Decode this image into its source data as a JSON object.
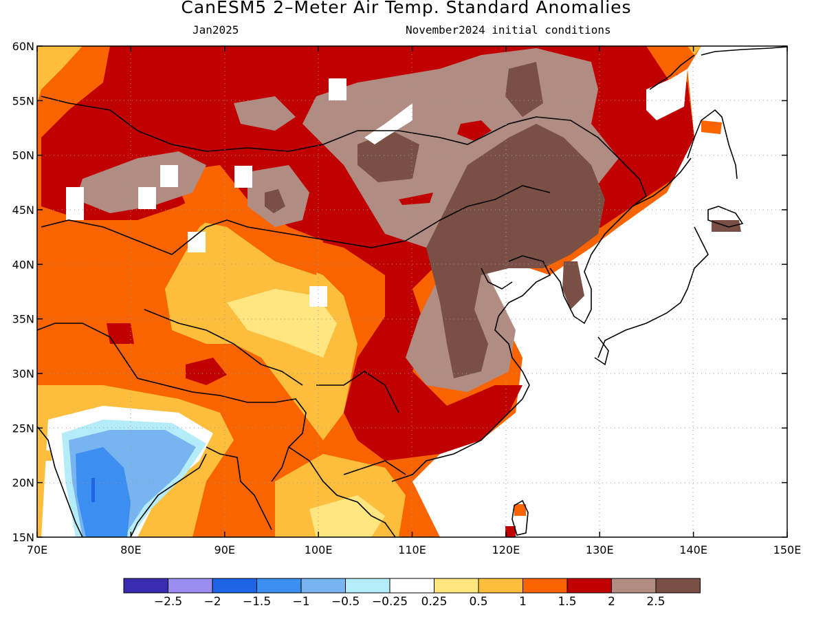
{
  "title": "CanESM5 2–Meter Air Temp. Standard Anomalies",
  "subtitle_left": "Jan2025",
  "subtitle_right": "November2024 initial conditions",
  "map": {
    "lon_min": 70,
    "lon_max": 150,
    "lat_min": 15,
    "lat_max": 60,
    "lat_labels": [
      "15N",
      "20N",
      "25N",
      "30N",
      "35N",
      "40N",
      "45N",
      "50N",
      "55N",
      "60N"
    ],
    "lon_labels": [
      "70E",
      "80E",
      "90E",
      "100E",
      "110E",
      "120E",
      "130E",
      "140E",
      "150E"
    ],
    "grid": "dotted"
  },
  "colorbar": {
    "colors": [
      "#3a2cb0",
      "#9b8cf0",
      "#1e64e6",
      "#3c8ef0",
      "#78b4f0",
      "#b4ecfa",
      "#ffffff",
      "#ffe680",
      "#fcbe3c",
      "#fa6400",
      "#c00000",
      "#b08c82",
      "#7a5046"
    ],
    "labels": [
      "−2.5",
      "−2",
      "−1.5",
      "−1",
      "−0.5",
      "−0.25",
      "0.25",
      "0.5",
      "1",
      "1.5",
      "2",
      "2.5"
    ]
  }
}
